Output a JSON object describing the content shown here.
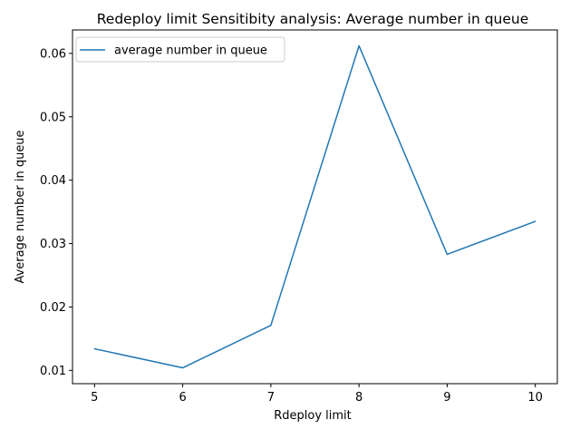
{
  "chart_data": {
    "type": "line",
    "title": "Redeploy limit Sensitibity analysis: Average number in queue",
    "xlabel": "Rdeploy limit",
    "ylabel": "Average number in queue",
    "x": [
      5,
      6,
      7,
      8,
      9,
      10
    ],
    "series": [
      {
        "name": "average number in queue",
        "values": [
          0.0134,
          0.0104,
          0.0171,
          0.0612,
          0.0283,
          0.0335
        ],
        "color": "#1f77b4"
      }
    ],
    "xlim": [
      4.75,
      10.25
    ],
    "ylim": [
      0.0079,
      0.0637
    ],
    "xticks": [
      5,
      6,
      7,
      8,
      9,
      10
    ],
    "xtick_labels": [
      "5",
      "6",
      "7",
      "8",
      "9",
      "10"
    ],
    "yticks": [
      0.01,
      0.02,
      0.03,
      0.04,
      0.05,
      0.06
    ],
    "ytick_labels": [
      "0.01",
      "0.02",
      "0.03",
      "0.04",
      "0.05",
      "0.06"
    ],
    "grid": false,
    "legend": "upper-left"
  }
}
